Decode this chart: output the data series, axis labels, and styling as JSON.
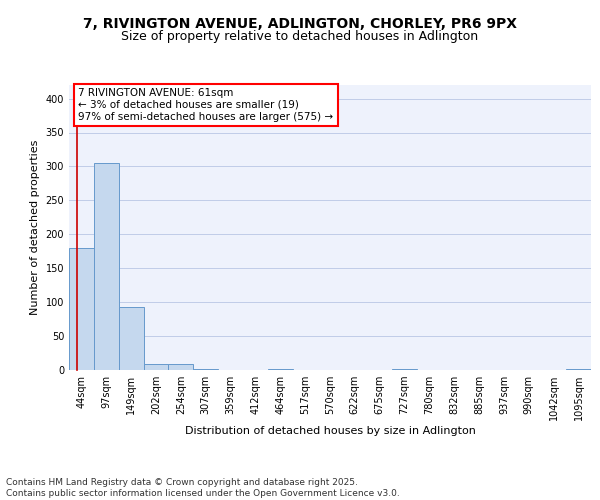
{
  "title1": "7, RIVINGTON AVENUE, ADLINGTON, CHORLEY, PR6 9PX",
  "title2": "Size of property relative to detached houses in Adlington",
  "xlabel": "Distribution of detached houses by size in Adlington",
  "ylabel": "Number of detached properties",
  "bar_color": "#c5d8ee",
  "bar_edge_color": "#6699cc",
  "annotation_text": "7 RIVINGTON AVENUE: 61sqm\n← 3% of detached houses are smaller (19)\n97% of semi-detached houses are larger (575) →",
  "property_line_color": "#cc0000",
  "categories": [
    "44sqm",
    "97sqm",
    "149sqm",
    "202sqm",
    "254sqm",
    "307sqm",
    "359sqm",
    "412sqm",
    "464sqm",
    "517sqm",
    "570sqm",
    "622sqm",
    "675sqm",
    "727sqm",
    "780sqm",
    "832sqm",
    "885sqm",
    "937sqm",
    "990sqm",
    "1042sqm",
    "1095sqm"
  ],
  "values": [
    180,
    305,
    93,
    9,
    9,
    2,
    0,
    0,
    2,
    0,
    0,
    0,
    0,
    1,
    0,
    0,
    0,
    0,
    0,
    0,
    1
  ],
  "ylim": [
    0,
    420
  ],
  "yticks": [
    0,
    50,
    100,
    150,
    200,
    250,
    300,
    350,
    400
  ],
  "background_color": "#eef2fc",
  "grid_color": "#c0cce8",
  "footer": "Contains HM Land Registry data © Crown copyright and database right 2025.\nContains public sector information licensed under the Open Government Licence v3.0.",
  "title_fontsize": 10,
  "subtitle_fontsize": 9,
  "axis_label_fontsize": 8,
  "tick_fontsize": 7,
  "annotation_fontsize": 7.5,
  "footer_fontsize": 6.5
}
